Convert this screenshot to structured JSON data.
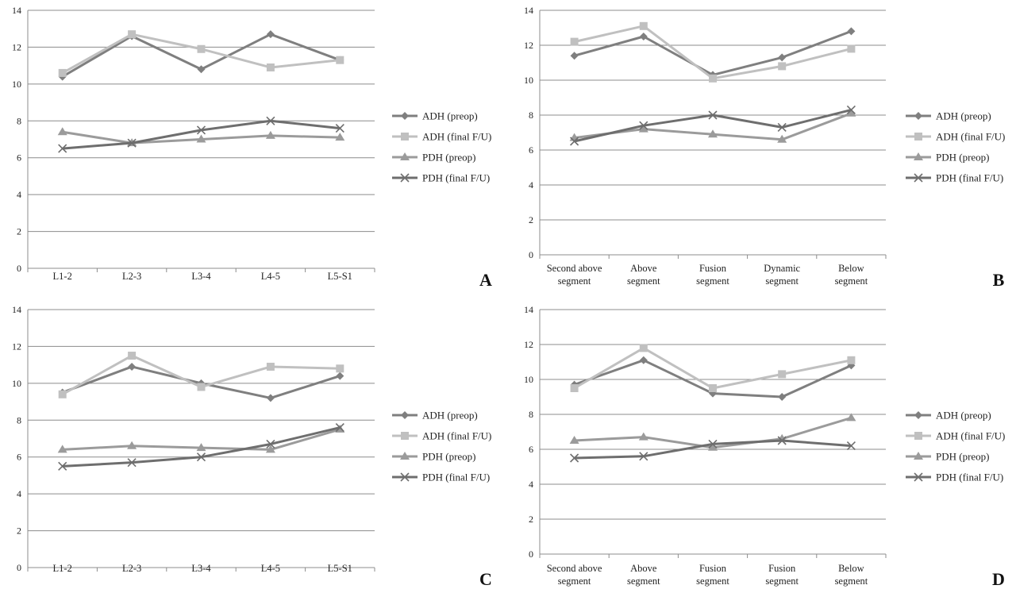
{
  "legend_names": [
    "ADH (preop)",
    "ADH (final F/U)",
    "PDH (preop)",
    "PDH (final F/U)"
  ],
  "series_colors": [
    "#7f7f7f",
    "#c0c0c0",
    "#9b9b9b",
    "#6e6e6e"
  ],
  "series_markers": [
    "diamond",
    "square",
    "triangle",
    "x"
  ],
  "chart_data": [
    {
      "panel": "A",
      "type": "line",
      "ylim": [
        0,
        14
      ],
      "yticks": [
        0,
        2,
        4,
        6,
        8,
        10,
        12,
        14
      ],
      "grid": "horizontal",
      "legend": "right",
      "categories": [
        [
          "L1-2"
        ],
        [
          "L2-3"
        ],
        [
          "L3-4"
        ],
        [
          "L4-5"
        ],
        [
          "L5-S1"
        ]
      ],
      "series": [
        {
          "name": "ADH (preop)",
          "values": [
            10.4,
            12.6,
            10.8,
            12.7,
            11.3
          ]
        },
        {
          "name": "ADH (final F/U)",
          "values": [
            10.6,
            12.7,
            11.9,
            10.9,
            11.3
          ]
        },
        {
          "name": "PDH (preop)",
          "values": [
            7.4,
            6.8,
            7.0,
            7.2,
            7.1
          ]
        },
        {
          "name": "PDH (final F/U)",
          "values": [
            6.5,
            6.8,
            7.5,
            8.0,
            7.6
          ]
        }
      ]
    },
    {
      "panel": "B",
      "type": "line",
      "ylim": [
        0,
        14
      ],
      "yticks": [
        0,
        2,
        4,
        6,
        8,
        10,
        12,
        14
      ],
      "grid": "horizontal",
      "legend": "right",
      "categories": [
        [
          "Second above",
          "segment"
        ],
        [
          "Above",
          "segment"
        ],
        [
          "Fusion",
          "segment"
        ],
        [
          "Dynamic",
          "segment"
        ],
        [
          "Below",
          "segment"
        ]
      ],
      "series": [
        {
          "name": "ADH (preop)",
          "values": [
            11.4,
            12.5,
            10.3,
            11.3,
            12.8
          ]
        },
        {
          "name": "ADH (final F/U)",
          "values": [
            12.2,
            13.1,
            10.1,
            10.8,
            11.8
          ]
        },
        {
          "name": "PDH (preop)",
          "values": [
            6.7,
            7.2,
            6.9,
            6.6,
            8.1
          ]
        },
        {
          "name": "PDH (final F/U)",
          "values": [
            6.5,
            7.4,
            8.0,
            7.3,
            8.3
          ]
        }
      ]
    },
    {
      "panel": "C",
      "type": "line",
      "ylim": [
        0,
        14
      ],
      "yticks": [
        0,
        2,
        4,
        6,
        8,
        10,
        12,
        14
      ],
      "grid": "horizontal",
      "legend": "right",
      "categories": [
        [
          "L1-2"
        ],
        [
          "L2-3"
        ],
        [
          "L3-4"
        ],
        [
          "L4-5"
        ],
        [
          "L5-S1"
        ]
      ],
      "series": [
        {
          "name": "ADH (preop)",
          "values": [
            9.5,
            10.9,
            10.0,
            9.2,
            10.4
          ]
        },
        {
          "name": "ADH (final F/U)",
          "values": [
            9.4,
            11.5,
            9.8,
            10.9,
            10.8
          ]
        },
        {
          "name": "PDH (preop)",
          "values": [
            6.4,
            6.6,
            6.5,
            6.4,
            7.5
          ]
        },
        {
          "name": "PDH (final F/U)",
          "values": [
            5.5,
            5.7,
            6.0,
            6.7,
            7.6
          ]
        }
      ]
    },
    {
      "panel": "D",
      "type": "line",
      "ylim": [
        0,
        14
      ],
      "yticks": [
        0,
        2,
        4,
        6,
        8,
        10,
        12,
        14
      ],
      "grid": "horizontal",
      "legend": "right",
      "categories": [
        [
          "Second above",
          "segment"
        ],
        [
          "Above",
          "segment"
        ],
        [
          "Fusion",
          "segment"
        ],
        [
          "Fusion",
          "segment"
        ],
        [
          "Below",
          "segment"
        ]
      ],
      "series": [
        {
          "name": "ADH (preop)",
          "values": [
            9.7,
            11.1,
            9.2,
            9.0,
            10.8
          ]
        },
        {
          "name": "ADH (final F/U)",
          "values": [
            9.5,
            11.8,
            9.5,
            10.3,
            11.1
          ]
        },
        {
          "name": "PDH (preop)",
          "values": [
            6.5,
            6.7,
            6.1,
            6.6,
            7.8
          ]
        },
        {
          "name": "PDH (final F/U)",
          "values": [
            5.5,
            5.6,
            6.3,
            6.5,
            6.2
          ]
        }
      ]
    }
  ]
}
